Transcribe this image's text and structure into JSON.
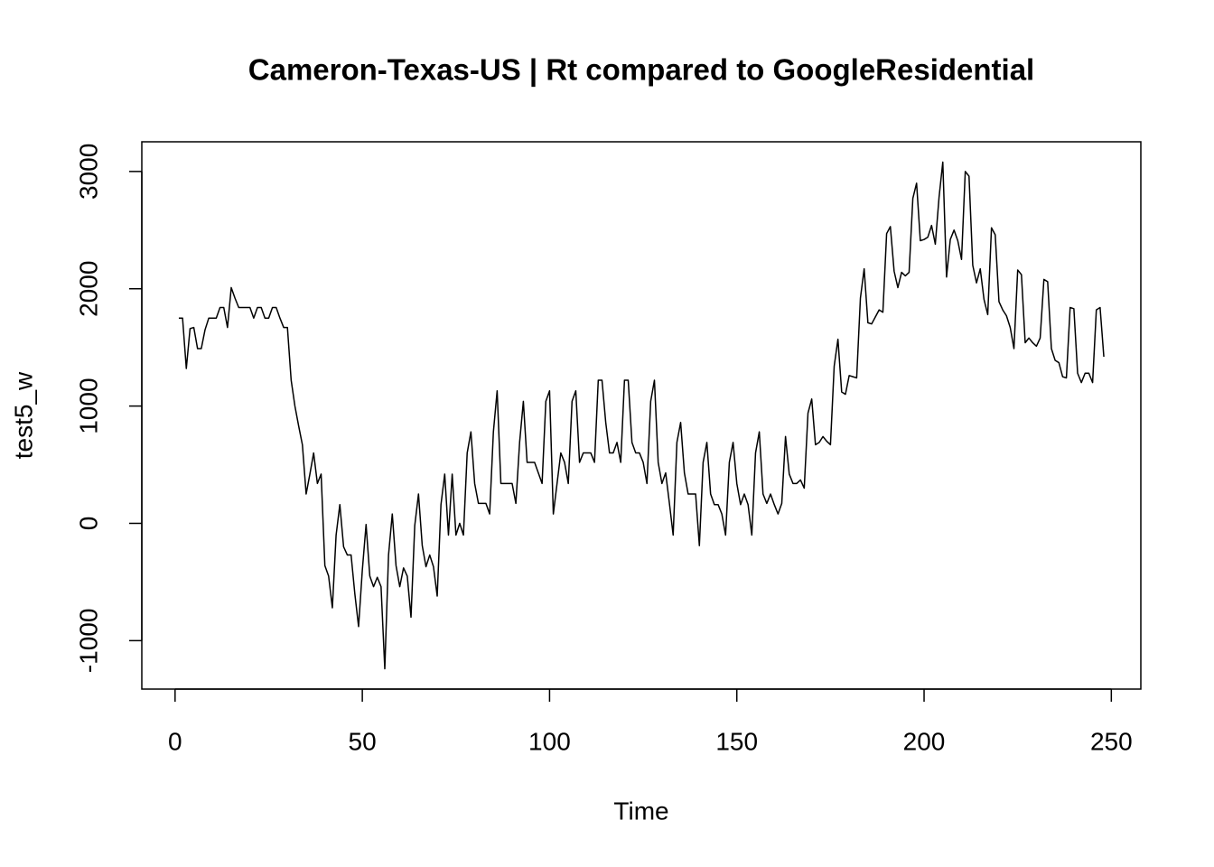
{
  "chart_data": {
    "type": "line",
    "title": "Cameron-Texas-US | Rt compared to GoogleResidential",
    "xlabel": "Time",
    "ylabel": "test5_w",
    "x": [
      1,
      2,
      3,
      4,
      5,
      6,
      7,
      8,
      9,
      10,
      11,
      12,
      13,
      14,
      15,
      16,
      17,
      18,
      19,
      20,
      21,
      22,
      23,
      24,
      25,
      26,
      27,
      28,
      29,
      30,
      31,
      32,
      33,
      34,
      35,
      36,
      37,
      38,
      39,
      40,
      41,
      42,
      43,
      44,
      45,
      46,
      47,
      48,
      49,
      50,
      51,
      52,
      53,
      54,
      55,
      56,
      57,
      58,
      59,
      60,
      61,
      62,
      63,
      64,
      65,
      66,
      67,
      68,
      69,
      70,
      71,
      72,
      73,
      74,
      75,
      76,
      77,
      78,
      79,
      80,
      81,
      82,
      83,
      84,
      85,
      86,
      87,
      88,
      89,
      90,
      91,
      92,
      93,
      94,
      95,
      96,
      97,
      98,
      99,
      100,
      101,
      102,
      103,
      104,
      105,
      106,
      107,
      108,
      109,
      110,
      111,
      112,
      113,
      114,
      115,
      116,
      117,
      118,
      119,
      120,
      121,
      122,
      123,
      124,
      125,
      126,
      127,
      128,
      129,
      130,
      131,
      132,
      133,
      134,
      135,
      136,
      137,
      138,
      139,
      140,
      141,
      142,
      143,
      144,
      145,
      146,
      147,
      148,
      149,
      150,
      151,
      152,
      153,
      154,
      155,
      156,
      157,
      158,
      159,
      160,
      161,
      162,
      163,
      164,
      165,
      166,
      167,
      168,
      169,
      170,
      171,
      172,
      173,
      174,
      175,
      176,
      177,
      178,
      179,
      180,
      181,
      182,
      183,
      184,
      185,
      186,
      187,
      188,
      189,
      190,
      191,
      192,
      193,
      194,
      195,
      196,
      197,
      198,
      199,
      200,
      201,
      202,
      203,
      204,
      205,
      206,
      207,
      208,
      209,
      210,
      211,
      212,
      213,
      214,
      215,
      216,
      217,
      218,
      219,
      220,
      221,
      222,
      223,
      224,
      225,
      226,
      227,
      228,
      229,
      230,
      231,
      232,
      233,
      234,
      235,
      236,
      237,
      238,
      239,
      240,
      241,
      242,
      243,
      244,
      245,
      246,
      247,
      248
    ],
    "series": [
      {
        "color": "#000000",
        "values": [
          1750,
          1750,
          1320,
          1660,
          1670,
          1490,
          1490,
          1650,
          1750,
          1750,
          1750,
          1840,
          1840,
          1670,
          2010,
          1920,
          1840,
          1840,
          1840,
          1840,
          1750,
          1840,
          1840,
          1750,
          1750,
          1840,
          1840,
          1750,
          1670,
          1670,
          1220,
          1000,
          830,
          670,
          250,
          420,
          600,
          340,
          420,
          -360,
          -450,
          -720,
          -100,
          160,
          -200,
          -270,
          -270,
          -600,
          -880,
          -400,
          -10,
          -450,
          -540,
          -460,
          -540,
          -1240,
          -270,
          80,
          -360,
          -540,
          -380,
          -450,
          -800,
          -20,
          250,
          -190,
          -370,
          -270,
          -370,
          -620,
          160,
          420,
          -100,
          420,
          -100,
          0,
          -100,
          600,
          780,
          340,
          170,
          170,
          170,
          80,
          780,
          1130,
          340,
          340,
          340,
          340,
          170,
          690,
          1040,
          520,
          520,
          520,
          430,
          340,
          1040,
          1130,
          80,
          340,
          600,
          520,
          340,
          1040,
          1130,
          520,
          600,
          600,
          600,
          520,
          1220,
          1220,
          860,
          600,
          600,
          690,
          520,
          1220,
          1220,
          690,
          600,
          600,
          520,
          340,
          1040,
          1220,
          520,
          340,
          430,
          170,
          -100,
          690,
          860,
          430,
          250,
          250,
          250,
          -190,
          520,
          690,
          250,
          160,
          160,
          80,
          -100,
          520,
          690,
          340,
          160,
          250,
          160,
          -100,
          600,
          780,
          250,
          170,
          250,
          160,
          80,
          170,
          740,
          420,
          340,
          340,
          370,
          300,
          940,
          1060,
          670,
          690,
          740,
          700,
          670,
          1340,
          1570,
          1120,
          1100,
          1260,
          1250,
          1240,
          1920,
          2170,
          1710,
          1700,
          1760,
          1820,
          1800,
          2470,
          2530,
          2150,
          2010,
          2140,
          2110,
          2140,
          2770,
          2900,
          2410,
          2420,
          2440,
          2540,
          2380,
          2780,
          3080,
          2100,
          2420,
          2500,
          2410,
          2250,
          3000,
          2960,
          2200,
          2050,
          2170,
          1910,
          1780,
          2520,
          2460,
          1890,
          1820,
          1770,
          1670,
          1490,
          2160,
          2120,
          1540,
          1580,
          1540,
          1510,
          1580,
          2080,
          2060,
          1490,
          1390,
          1370,
          1250,
          1240,
          1840,
          1830,
          1280,
          1200,
          1280,
          1280,
          1200,
          1820,
          1840,
          1420
        ]
      }
    ],
    "xlim": [
      -8.88,
      257.88
    ],
    "xticks": [
      0,
      50,
      100,
      150,
      200,
      250
    ],
    "ylim": [
      -1413,
      3253
    ],
    "yticks": [
      -1000,
      0,
      1000,
      2000,
      3000
    ]
  }
}
